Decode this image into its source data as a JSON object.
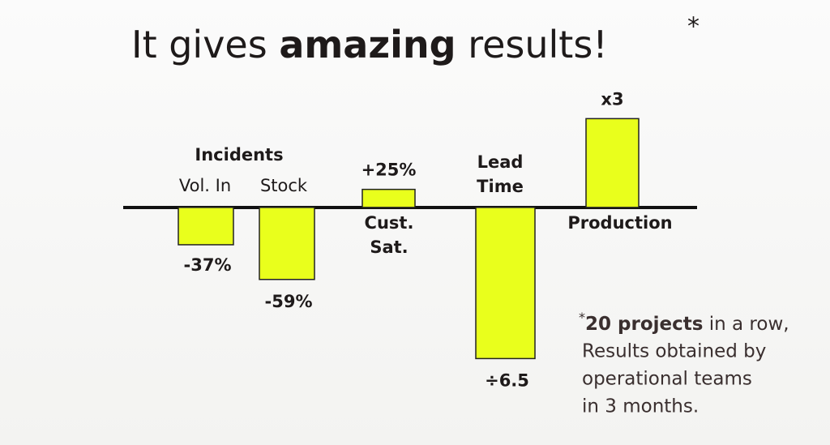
{
  "title": {
    "before": "It gives",
    "emphasis": "amazing",
    "after": "results!",
    "mark": "*"
  },
  "chart_data": {
    "type": "bar",
    "group_label": "Incidents",
    "categories": [
      "Vol. In",
      "Stock",
      "Cust. Sat.",
      "Lead Time",
      "Production"
    ],
    "values": [
      0.63,
      0.41,
      1.25,
      0.154,
      3
    ],
    "value_labels": [
      "-37%",
      "-59%",
      "+25%",
      "÷6.5",
      "x3"
    ],
    "color": "#e9ff1c",
    "log_scale": true,
    "ylim": [
      0.15,
      3.5
    ]
  },
  "footnote": {
    "mark": "*",
    "emphasis": "20 projects",
    "rest": "in a row,",
    "lines": [
      "Results obtained by",
      "operational teams",
      "in 3 months."
    ]
  }
}
